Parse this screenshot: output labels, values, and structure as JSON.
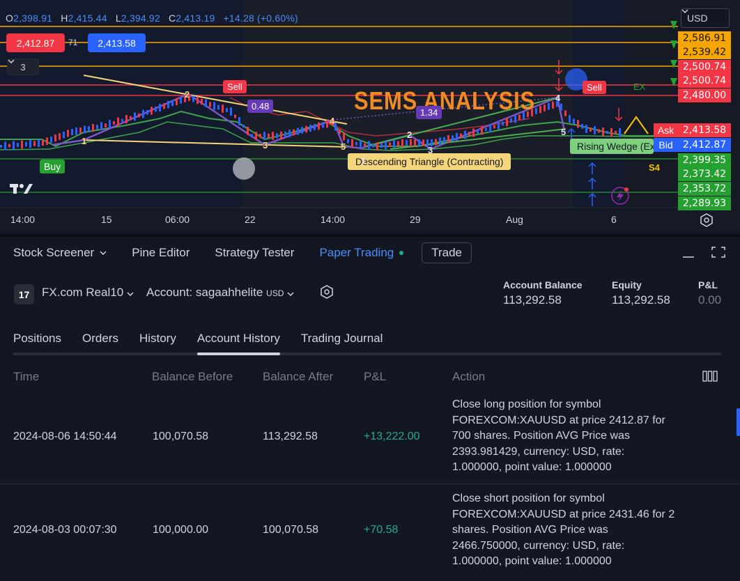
{
  "chart": {
    "ohlc": {
      "o_label": "O",
      "o": "2,398.91",
      "h_label": "H",
      "h": "2,415.44",
      "l_label": "L",
      "l": "2,394.92",
      "c_label": "C",
      "c": "2,413.19",
      "change": "+14.28 (+0.60%)"
    },
    "sell_price": "2,412.87",
    "spread": "71",
    "buy_price": "2,413.58",
    "indicators_count": "3",
    "currency": "USD",
    "watermark": "SEMS ANALYSIS",
    "price_labels": [
      {
        "text": "2,586.91",
        "bg": "#f7a600",
        "fg": "#131722"
      },
      {
        "text": "2,539.42",
        "bg": "#f7a600",
        "fg": "#131722"
      },
      {
        "text": "2,500.74",
        "bg": "#f23645",
        "fg": "#ffffff"
      },
      {
        "text": "2,500.74",
        "bg": "#f23645",
        "fg": "#ffffff"
      },
      {
        "text": "2,480.00",
        "bg": "#f23645",
        "fg": "#ffffff"
      },
      {
        "text": "2,413.58",
        "bg": "#f23645",
        "fg": "#ffffff"
      },
      {
        "text": "2,412.87",
        "bg": "#2962ff",
        "fg": "#ffffff"
      },
      {
        "text": "2,399.35",
        "bg": "#26a131",
        "fg": "#ffffff"
      },
      {
        "text": "2,373.42",
        "bg": "#26a131",
        "fg": "#ffffff"
      },
      {
        "text": "2,353.72",
        "bg": "#26a131",
        "fg": "#ffffff"
      },
      {
        "text": "2,289.93",
        "bg": "#26a131",
        "fg": "#ffffff"
      }
    ],
    "ask_label": "Ask",
    "bid_label": "Bid",
    "time_labels": [
      "14:00",
      "15",
      "06:00",
      "22",
      "14:00",
      "29",
      "Aug",
      "6"
    ],
    "signals": {
      "buy": "Buy",
      "sell1": "Sell",
      "sell2": "Sell",
      "ex": "EX",
      "s4": "S4"
    },
    "badges": {
      "b1": "0.48",
      "b2": "1.34"
    },
    "pattern_labels": {
      "triangle": "Descending Triangle (Contracting)",
      "wedge": "Rising Wedge (Ex"
    },
    "wave_numbers": [
      "1",
      "2",
      "3",
      "4",
      "5",
      "1",
      "2",
      "3",
      "4",
      "5"
    ]
  },
  "panel": {
    "tabs": [
      {
        "label": "Stock Screener"
      },
      {
        "label": "Pine Editor"
      },
      {
        "label": "Strategy Tester"
      },
      {
        "label": "Paper Trading"
      }
    ],
    "trade_button": "Trade",
    "broker": "FX.com Real10",
    "account_label": "Account: sagaahhelite",
    "account_currency": "USD",
    "stats": [
      {
        "label": "Account Balance",
        "value": "113,292.58"
      },
      {
        "label": "Equity",
        "value": "113,292.58"
      },
      {
        "label": "P&L",
        "value": "0.00"
      }
    ],
    "subtabs": [
      "Positions",
      "Orders",
      "History",
      "Account History",
      "Trading Journal"
    ],
    "columns": [
      "Time",
      "Balance Before",
      "Balance After",
      "P&L",
      "Action"
    ],
    "rows": [
      {
        "time": "2024-08-06 14:50:44",
        "before": "100,070.58",
        "after": "113,292.58",
        "pnl": "+13,222.00",
        "action": [
          "Close long position for symbol",
          "FOREXCOM:XAUUSD at price 2412.87 for",
          "700 shares. Position AVG Price was",
          "2393.981429, currency: USD, rate:",
          "1.000000, point value: 1.000000"
        ]
      },
      {
        "time": "2024-08-03 00:07:30",
        "before": "100,000.00",
        "after": "100,070.58",
        "pnl": "+70.58",
        "action": [
          "Close short position for symbol",
          "FOREXCOM:XAUUSD at price 2431.46 for 2",
          "shares. Position AVG Price was",
          "2466.750000, currency: USD, rate:",
          "1.000000, point value: 1.000000"
        ]
      }
    ]
  }
}
